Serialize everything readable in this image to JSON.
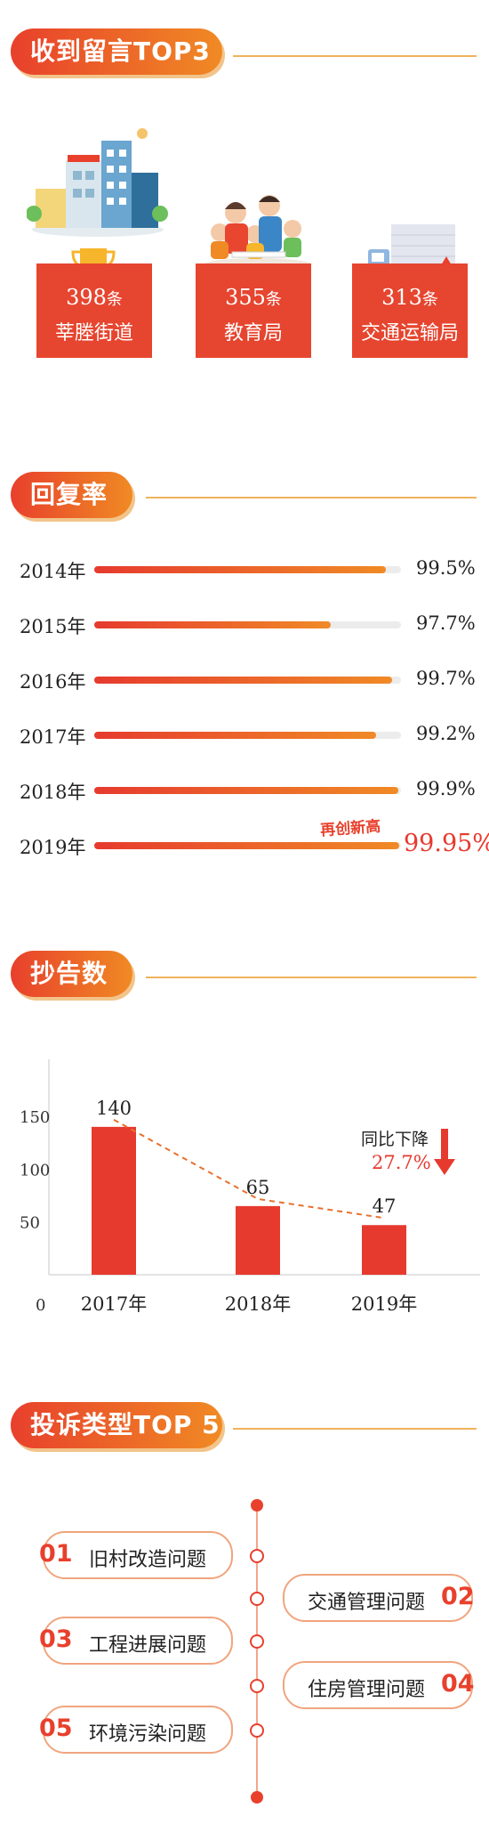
{
  "sections": {
    "top3": {
      "title": "收到留言TOP3"
    },
    "reply": {
      "title": "回复率"
    },
    "cc": {
      "title": "抄告数"
    },
    "complaint": {
      "title": "投诉类型TOP 5"
    }
  },
  "top3": [
    {
      "count": "398",
      "unit": "条",
      "name": "莘塍街道"
    },
    {
      "count": "355",
      "unit": "条",
      "name": "教育局"
    },
    {
      "count": "313",
      "unit": "条",
      "name": "交通运输局"
    }
  ],
  "reply_rates": [
    {
      "year": "2014年",
      "label": "99.5%",
      "value": 99.5
    },
    {
      "year": "2015年",
      "label": "97.7%",
      "value": 97.7
    },
    {
      "year": "2016年",
      "label": "99.7%",
      "value": 99.7
    },
    {
      "year": "2017年",
      "label": "99.2%",
      "value": 99.2
    },
    {
      "year": "2018年",
      "label": "99.9%",
      "value": 99.9
    },
    {
      "year": "2019年",
      "label": "99.95%",
      "value": 99.95
    }
  ],
  "record_badge": "再创新高",
  "colors": {
    "accent": "#e8402c",
    "accent_end": "#f08a24",
    "line": "#f0b35c"
  },
  "chart_data": {
    "type": "bar",
    "categories": [
      "2017年",
      "2018年",
      "2019年"
    ],
    "values": [
      140,
      65,
      47
    ],
    "value_labels": [
      "140",
      "65",
      "47"
    ],
    "yticks": [
      "150",
      "100",
      "50",
      "0"
    ],
    "ylim": [
      0,
      150
    ],
    "annotation": {
      "text": "同比下降",
      "value": "27.7%"
    }
  },
  "complaints": [
    {
      "no": "01",
      "text": "旧村改造问题"
    },
    {
      "no": "02",
      "text": "交通管理问题"
    },
    {
      "no": "03",
      "text": "工程进展问题"
    },
    {
      "no": "04",
      "text": "住房管理问题"
    },
    {
      "no": "05",
      "text": "环境污染问题"
    }
  ]
}
